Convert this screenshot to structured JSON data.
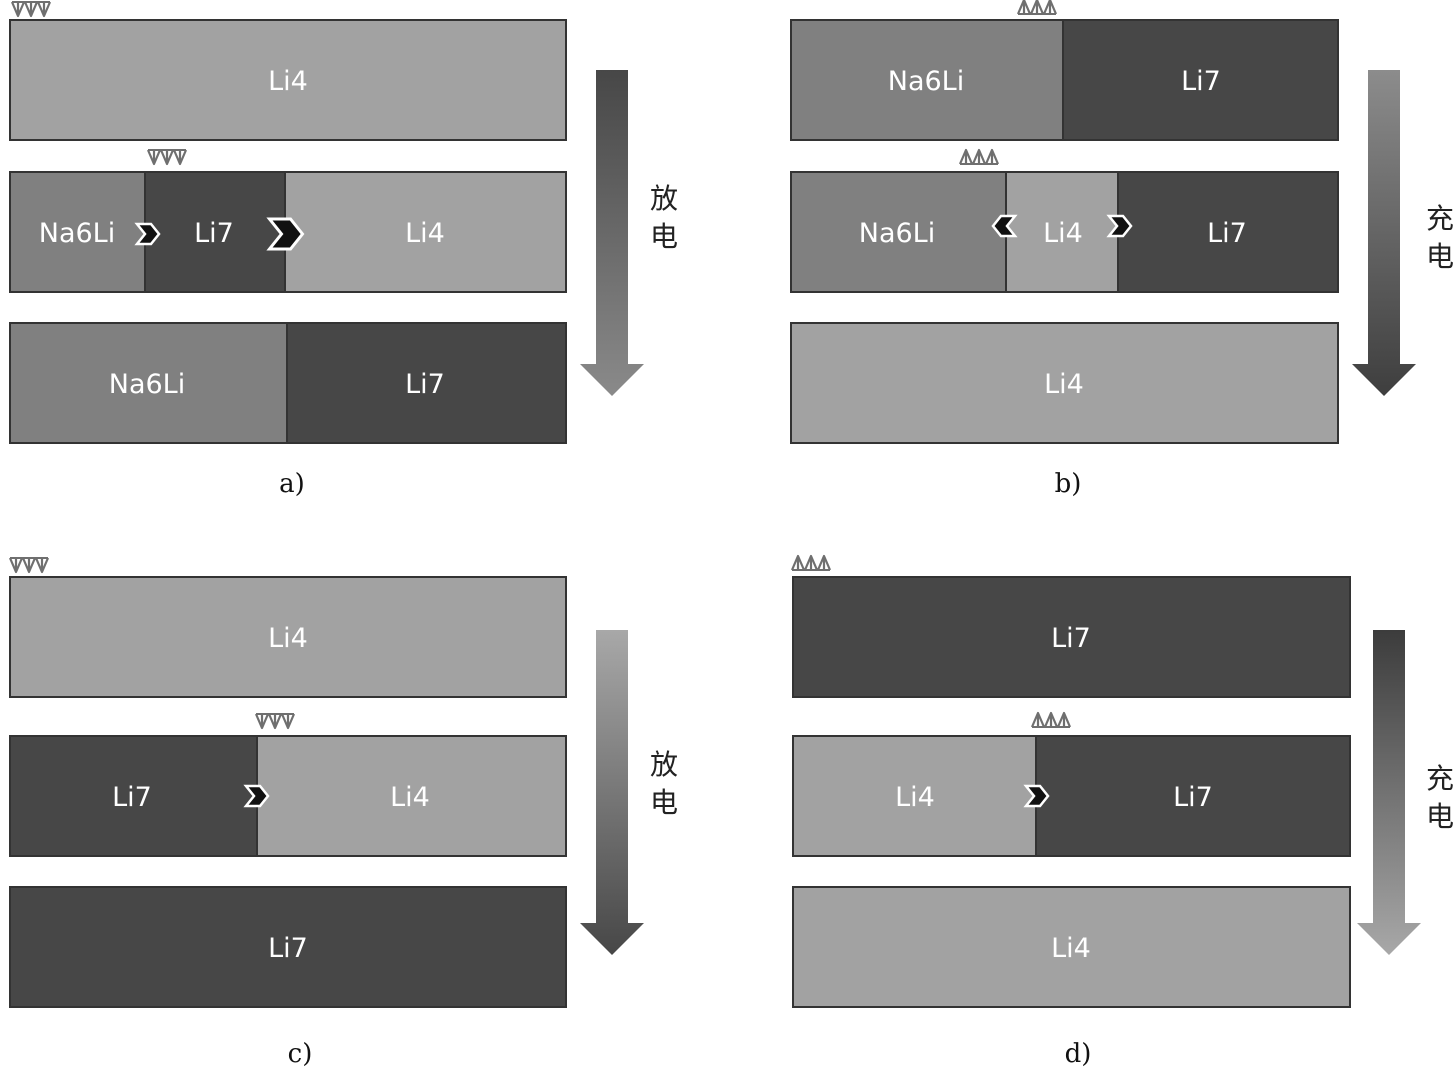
{
  "colors": {
    "light": "#a2a2a2",
    "mid": "#808080",
    "dark": "#474747",
    "border": "#333333",
    "label": "#ffffff",
    "glyph": "#111111"
  },
  "panels": [
    {
      "caption": "a)",
      "direction_label": [
        "放",
        "电"
      ],
      "arrow": "discharge",
      "rows": [
        {
          "segments": [
            {
              "label": "Li4",
              "tone": "light"
            }
          ]
        },
        {
          "segments": [
            {
              "label": "Na6Li",
              "tone": "mid"
            },
            {
              "label": "Li7",
              "tone": "dark"
            },
            {
              "label": "Li4",
              "tone": "light"
            }
          ]
        },
        {
          "segments": [
            {
              "label": "Na6Li",
              "tone": "mid"
            },
            {
              "label": "Li7",
              "tone": "dark"
            }
          ]
        }
      ]
    },
    {
      "caption": "b)",
      "direction_label": [
        "充",
        "电"
      ],
      "arrow": "charge",
      "rows": [
        {
          "segments": [
            {
              "label": "Na6Li",
              "tone": "mid"
            },
            {
              "label": "Li7",
              "tone": "dark"
            }
          ]
        },
        {
          "segments": [
            {
              "label": "Na6Li",
              "tone": "mid"
            },
            {
              "label": "Li4",
              "tone": "light"
            },
            {
              "label": "Li7",
              "tone": "dark"
            }
          ]
        },
        {
          "segments": [
            {
              "label": "Li4",
              "tone": "light"
            }
          ]
        }
      ]
    },
    {
      "caption": "c)",
      "direction_label": [
        "放",
        "电"
      ],
      "arrow": "discharge-light",
      "rows": [
        {
          "segments": [
            {
              "label": "Li4",
              "tone": "light"
            }
          ]
        },
        {
          "segments": [
            {
              "label": "Li7",
              "tone": "dark"
            },
            {
              "label": "Li4",
              "tone": "light"
            }
          ]
        },
        {
          "segments": [
            {
              "label": "Li7",
              "tone": "dark"
            }
          ]
        }
      ]
    },
    {
      "caption": "d)",
      "direction_label": [
        "充",
        "电"
      ],
      "arrow": "charge-dark",
      "rows": [
        {
          "segments": [
            {
              "label": "Li7",
              "tone": "dark"
            }
          ]
        },
        {
          "segments": [
            {
              "label": "Li4",
              "tone": "light"
            },
            {
              "label": "Li7",
              "tone": "dark"
            }
          ]
        },
        {
          "segments": [
            {
              "label": "Li4",
              "tone": "light"
            }
          ]
        }
      ]
    }
  ]
}
